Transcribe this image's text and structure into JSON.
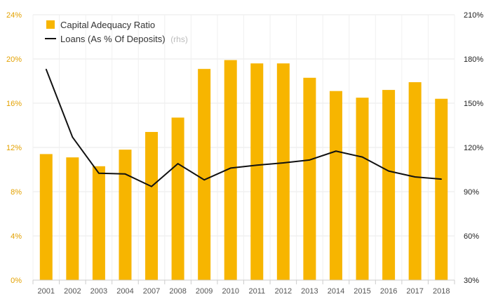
{
  "chart_data": {
    "type": "bar+line",
    "categories": [
      "2001",
      "2002",
      "2003",
      "2004",
      "2007",
      "2008",
      "2009",
      "2010",
      "2011",
      "2012",
      "2013",
      "2014",
      "2015",
      "2016",
      "2017",
      "2018"
    ],
    "series": [
      {
        "name": "Capital Adequacy Ratio",
        "type": "bar",
        "axis": "left",
        "color": "#f7b500",
        "values": [
          11.4,
          11.1,
          10.3,
          11.8,
          13.4,
          14.7,
          19.1,
          19.9,
          19.6,
          19.6,
          18.3,
          17.1,
          16.5,
          17.2,
          17.9,
          16.4
        ]
      },
      {
        "name": "Loans (As % Of Deposits)",
        "name_suffix": "(rhs)",
        "type": "line",
        "axis": "right",
        "color": "#111111",
        "values": [
          173,
          127,
          102.5,
          102,
          93.5,
          109,
          98,
          106,
          108,
          109.5,
          111.5,
          117.5,
          113.5,
          104,
          100,
          98.5
        ]
      }
    ],
    "y_left": {
      "ylim": [
        0,
        24
      ],
      "ticks": [
        "0%",
        "4%",
        "8%",
        "12%",
        "16%",
        "20%",
        "24%"
      ],
      "tick_color": "#e3a100"
    },
    "y_right": {
      "ylim": [
        30,
        210
      ],
      "ticks": [
        "30%",
        "60%",
        "90%",
        "120%",
        "150%",
        "180%",
        "210%"
      ],
      "tick_color": "#222222"
    },
    "grid": true,
    "legend_position": "top-left"
  }
}
